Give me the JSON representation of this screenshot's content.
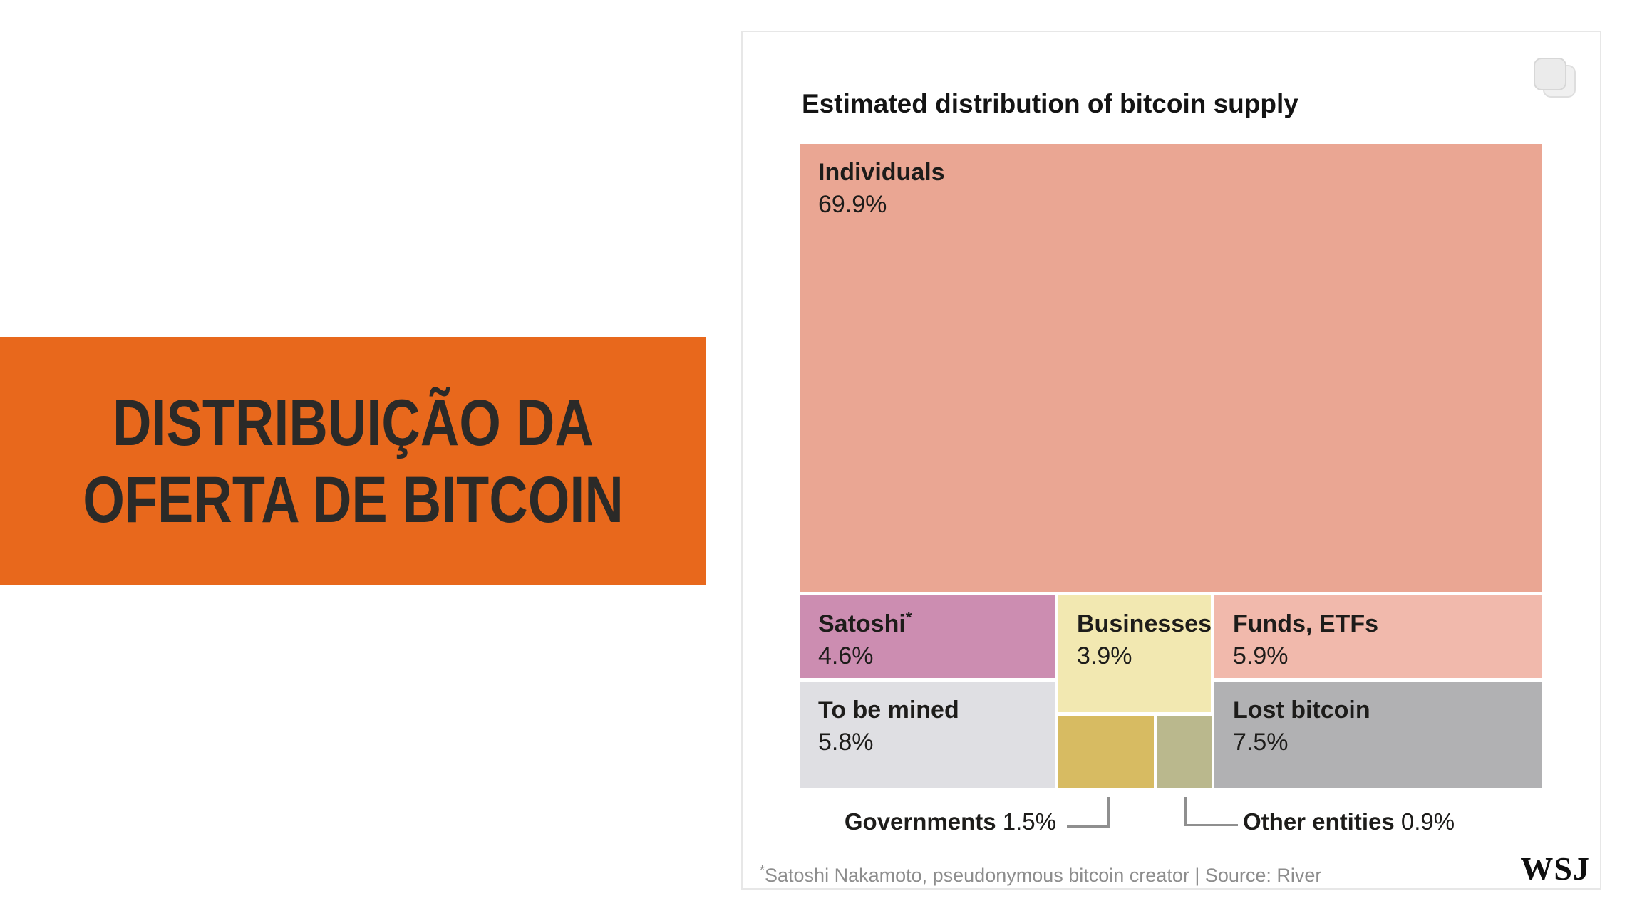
{
  "banner": {
    "line1": "DISTRIBUIÇÃO DA",
    "line2": "OFERTA DE BITCOIN",
    "bg_color": "#E8681C",
    "text_color": "#2B2A28"
  },
  "card": {
    "title": "Estimated distribution of bitcoin supply",
    "footnote_mark": "*",
    "footnote": "Satoshi Nakamoto, pseudonymous bitcoin creator | Source: River",
    "logo": "WSJ",
    "copy_icon": "copy-icon"
  },
  "chart_data": {
    "type": "treemap",
    "title": "Estimated distribution of bitcoin supply",
    "unit": "% of bitcoin supply",
    "source": "River",
    "footnote": "*Satoshi Nakamoto, pseudonymous bitcoin creator",
    "legend_position": "none",
    "items": [
      {
        "label": "Individuals",
        "value": 69.9,
        "display": "69.9%",
        "color": "#EAA693",
        "label_placement": "inside"
      },
      {
        "label": "Satoshi",
        "asterisk": "*",
        "value": 4.6,
        "display": "4.6%",
        "color": "#CC8DB1",
        "label_placement": "inside"
      },
      {
        "label": "Businesses",
        "value": 3.9,
        "display": "3.9%",
        "color": "#F2E8B1",
        "label_placement": "inside"
      },
      {
        "label": "Funds, ETFs",
        "value": 5.9,
        "display": "5.9%",
        "color": "#F1B9AC",
        "label_placement": "inside"
      },
      {
        "label": "To be mined",
        "value": 5.8,
        "display": "5.8%",
        "color": "#DFDFE3",
        "label_placement": "inside"
      },
      {
        "label": "Lost bitcoin",
        "value": 7.5,
        "display": "7.5%",
        "color": "#B1B1B3",
        "label_placement": "inside"
      },
      {
        "label": "Governments",
        "value": 1.5,
        "display": "1.5%",
        "color": "#D7BB62",
        "label_placement": "callout"
      },
      {
        "label": "Other entities",
        "value": 0.9,
        "display": "0.9%",
        "color": "#BAB88D",
        "label_placement": "callout"
      }
    ]
  }
}
